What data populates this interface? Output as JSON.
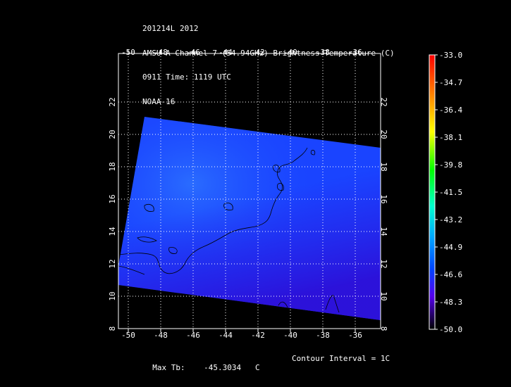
{
  "header": {
    "line1": "201214L 2012",
    "line2": "AMSU-A Channel 7 (54.94GHz) Brightness Temperature (C)",
    "line3": "0911 Time: 1119 UTC",
    "line4": "NOAA-16"
  },
  "map": {
    "lon_ticks": [
      "-50",
      "-48",
      "-46",
      "-44",
      "-42",
      "-40",
      "-38",
      "-36"
    ],
    "lat_ticks": [
      "8",
      "10",
      "12",
      "14",
      "16",
      "18",
      "20",
      "22"
    ],
    "lon_range": [
      -50.5,
      -34.5
    ],
    "lat_range": [
      8,
      25
    ],
    "swath_colors": {
      "base": "#1a44ff",
      "light": "#2a64ff",
      "dark": "#2a10e0"
    }
  },
  "colorbar": {
    "labels": [
      "-33.0",
      "-34.7",
      "-36.4",
      "-38.1",
      "-39.8",
      "-41.5",
      "-43.2",
      "-44.9",
      "-46.6",
      "-48.3",
      "-50.0"
    ],
    "max": -33.0,
    "min": -50.0
  },
  "footer": {
    "max_tb_label": "Max Tb:",
    "max_tb_value": "-45.3034",
    "max_tb_unit": "C",
    "contour_interval": "Contour Interval = 1C"
  }
}
